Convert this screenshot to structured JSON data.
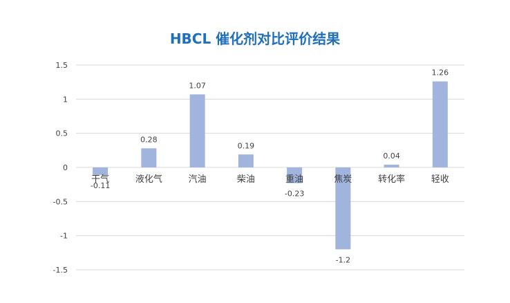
{
  "chart_data": {
    "type": "bar",
    "title": "HBCL 催化剂对比评价结果",
    "xlabel": "",
    "ylabel": "",
    "categories": [
      "干气",
      "液化气",
      "汽油",
      "柴油",
      "重油",
      "焦炭",
      "转化率",
      "轻收"
    ],
    "values": [
      -0.11,
      0.28,
      1.07,
      0.19,
      -0.23,
      -1.2,
      0.04,
      1.26
    ],
    "data_labels": [
      "-0.11",
      "0.28",
      "1.07",
      "0.19",
      "-0.23",
      "-1.2",
      "0.04",
      "1.26"
    ],
    "ylim": [
      -1.5,
      1.5
    ],
    "yticks": [
      1.5,
      1,
      0.5,
      0,
      -0.5,
      -1,
      -1.5
    ],
    "ytick_labels": [
      "1.5",
      "1",
      "0.5",
      "0",
      "-0.5",
      "-1",
      "-1.5"
    ],
    "grid": true,
    "legend": "none",
    "colors": {
      "bar": "#a0b4de",
      "grid": "#d9d9d9",
      "title": "#1f6fbf",
      "text": "#404040"
    }
  }
}
